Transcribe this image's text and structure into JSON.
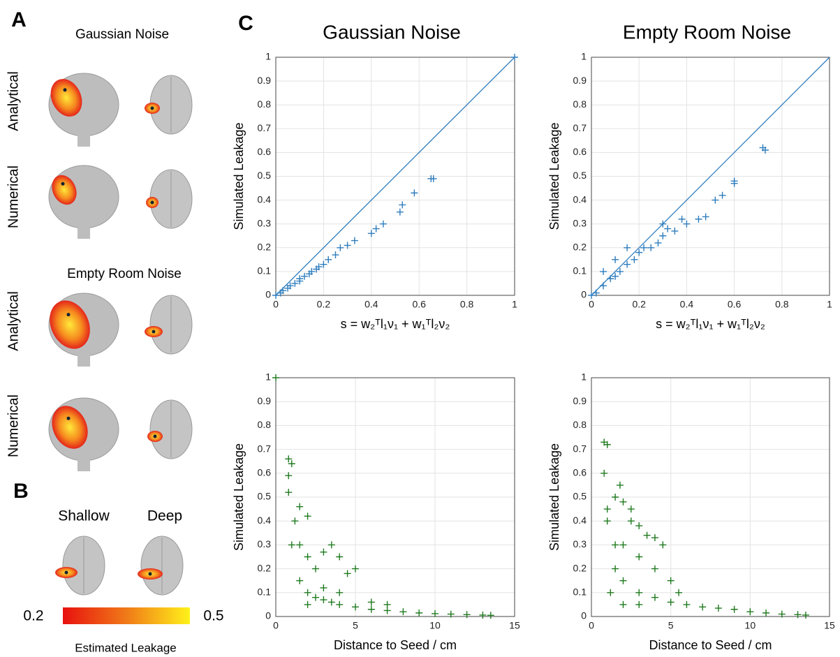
{
  "panel_a": {
    "label": "A",
    "conditions": [
      {
        "title": "Gaussian Noise",
        "rows": [
          "Analytical",
          "Numerical"
        ]
      },
      {
        "title": "Empty Room Noise",
        "rows": [
          "Analytical",
          "Numerical"
        ]
      }
    ]
  },
  "panel_b": {
    "label": "B",
    "columns": [
      "Shallow",
      "Deep"
    ],
    "colorbar": {
      "min": 0.2,
      "max": 0.5,
      "label": "Estimated Leakage"
    }
  },
  "panel_c": {
    "label": "C"
  },
  "chart_data": [
    {
      "type": "scatter",
      "title": "Gaussian Noise",
      "y_label": "Simulated Leakage",
      "x_label": "s = w₂ᵀl₁ν₁ + w₁ᵀl₂ν₂",
      "color": "#2f7dbd",
      "diagonal": true,
      "grid": true,
      "x": [
        0,
        0.02,
        0.03,
        0.05,
        0.06,
        0.08,
        0.1,
        0.1,
        0.12,
        0.14,
        0.15,
        0.17,
        0.18,
        0.2,
        0.22,
        0.25,
        0.27,
        0.3,
        0.33,
        0.4,
        0.42,
        0.45,
        0.52,
        0.53,
        0.58,
        0.65,
        0.66,
        1
      ],
      "values": [
        0,
        0.01,
        0.02,
        0.03,
        0.04,
        0.05,
        0.06,
        0.07,
        0.08,
        0.09,
        0.1,
        0.11,
        0.12,
        0.13,
        0.15,
        0.17,
        0.2,
        0.21,
        0.23,
        0.26,
        0.28,
        0.3,
        0.35,
        0.38,
        0.43,
        0.49,
        0.49,
        1
      ],
      "xlim": [
        0,
        1
      ],
      "xticks": [
        0,
        0.2,
        0.4,
        0.6,
        0.8,
        1
      ],
      "ylim": [
        0,
        1
      ],
      "yticks": [
        0,
        0.1,
        0.2,
        0.3,
        0.4,
        0.5,
        0.6,
        0.7,
        0.8,
        0.9,
        1
      ]
    },
    {
      "type": "scatter",
      "title": "Empty Room Noise",
      "y_label": "Simulated Leakage",
      "x_label": "s = w₂ᵀl₁ν₁ + w₁ᵀl₂ν₂",
      "color": "#2f7dbd",
      "diagonal": true,
      "grid": true,
      "x": [
        0,
        0.02,
        0.05,
        0.05,
        0.08,
        0.1,
        0.1,
        0.12,
        0.15,
        0.15,
        0.18,
        0.2,
        0.22,
        0.25,
        0.28,
        0.3,
        0.3,
        0.32,
        0.35,
        0.38,
        0.4,
        0.45,
        0.48,
        0.52,
        0.55,
        0.6,
        0.6,
        0.72,
        0.73
      ],
      "values": [
        0,
        0.01,
        0.04,
        0.1,
        0.07,
        0.08,
        0.15,
        0.1,
        0.13,
        0.2,
        0.15,
        0.18,
        0.2,
        0.2,
        0.22,
        0.25,
        0.3,
        0.28,
        0.27,
        0.32,
        0.3,
        0.32,
        0.33,
        0.4,
        0.42,
        0.47,
        0.48,
        0.62,
        0.61
      ],
      "xlim": [
        0,
        1
      ],
      "xticks": [
        0,
        0.2,
        0.4,
        0.6,
        0.8,
        1
      ],
      "ylim": [
        0,
        1
      ],
      "yticks": [
        0,
        0.1,
        0.2,
        0.3,
        0.4,
        0.5,
        0.6,
        0.7,
        0.8,
        0.9,
        1
      ]
    },
    {
      "type": "scatter",
      "y_label": "Simulated Leakage",
      "x_label": "Distance to Seed / cm",
      "color": "#1f7a1f",
      "diagonal": false,
      "grid": true,
      "x": [
        0,
        0.8,
        1,
        0.8,
        0.8,
        1.2,
        1.5,
        2,
        1,
        1.5,
        2,
        2.5,
        3,
        3.5,
        4,
        4.5,
        5,
        1.5,
        2,
        2.5,
        3,
        3.5,
        4,
        5,
        6,
        7,
        8,
        9,
        10,
        11,
        12,
        13,
        13.5,
        2,
        3,
        4,
        6,
        7
      ],
      "values": [
        1,
        0.66,
        0.64,
        0.59,
        0.52,
        0.4,
        0.46,
        0.42,
        0.3,
        0.3,
        0.25,
        0.2,
        0.27,
        0.3,
        0.25,
        0.18,
        0.2,
        0.15,
        0.1,
        0.08,
        0.07,
        0.06,
        0.05,
        0.04,
        0.03,
        0.025,
        0.02,
        0.015,
        0.012,
        0.01,
        0.008,
        0.006,
        0.005,
        0.05,
        0.12,
        0.1,
        0.06,
        0.05
      ],
      "xlim": [
        0,
        15
      ],
      "xticks": [
        0,
        5,
        10,
        15
      ],
      "ylim": [
        0,
        1
      ],
      "yticks": [
        0,
        0.1,
        0.2,
        0.3,
        0.4,
        0.5,
        0.6,
        0.7,
        0.8,
        0.9,
        1
      ]
    },
    {
      "type": "scatter",
      "y_label": "Simulated Leakage",
      "x_label": "Distance to Seed / cm",
      "color": "#1f7a1f",
      "diagonal": false,
      "grid": true,
      "x": [
        0.8,
        1,
        0.8,
        1.5,
        1.8,
        2,
        2.5,
        2.5,
        3,
        3.5,
        4,
        4.5,
        1,
        1.5,
        2,
        3,
        4,
        5,
        5.5,
        1.5,
        2,
        3,
        4,
        5,
        6,
        7,
        8,
        9,
        10,
        11,
        12,
        13,
        13.5,
        2,
        3,
        1.2,
        1
      ],
      "values": [
        0.73,
        0.72,
        0.6,
        0.5,
        0.55,
        0.48,
        0.45,
        0.4,
        0.38,
        0.34,
        0.33,
        0.3,
        0.4,
        0.3,
        0.3,
        0.25,
        0.2,
        0.15,
        0.1,
        0.2,
        0.15,
        0.1,
        0.08,
        0.06,
        0.05,
        0.04,
        0.035,
        0.03,
        0.02,
        0.015,
        0.01,
        0.008,
        0.006,
        0.05,
        0.05,
        0.1,
        0.45
      ],
      "xlim": [
        0,
        15
      ],
      "xticks": [
        0,
        5,
        10,
        15
      ],
      "ylim": [
        0,
        1
      ],
      "yticks": [
        0,
        0.1,
        0.2,
        0.3,
        0.4,
        0.5,
        0.6,
        0.7,
        0.8,
        0.9,
        1
      ]
    }
  ]
}
